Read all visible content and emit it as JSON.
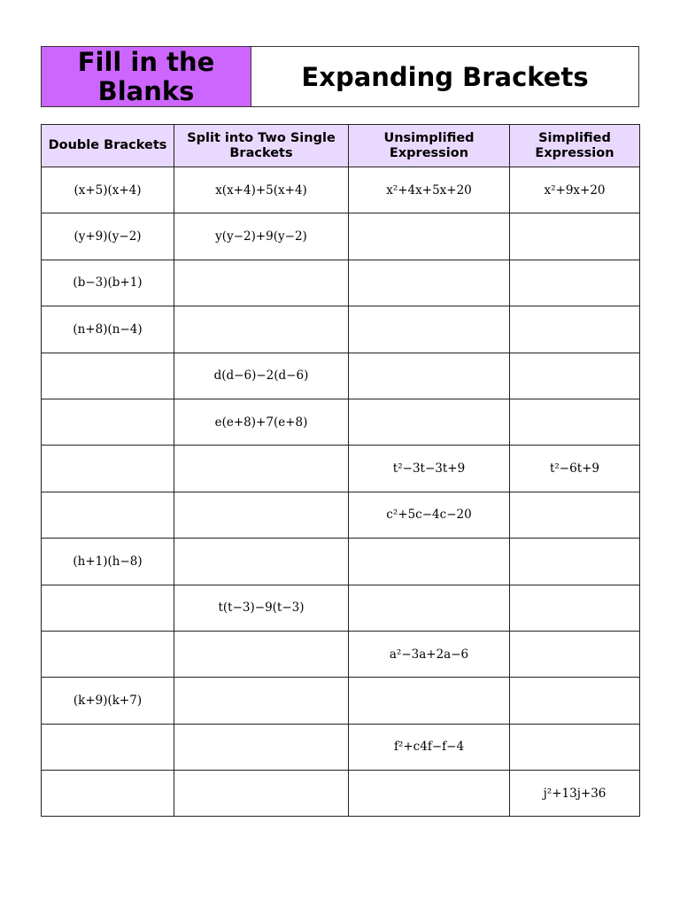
{
  "title": {
    "left": "Fill in the Blanks",
    "right": "Expanding Brackets"
  },
  "colors": {
    "title_fill": "#cc66ff",
    "header_fill": "#ead9ff"
  },
  "columns": [
    "Double Brackets",
    "Split into Two Single Brackets",
    "Unsimplified Expression",
    "Simplified Expression"
  ],
  "rows": [
    [
      "(x+5)(x+4)",
      "x(x+4)+5(x+4)",
      "x²+4x+5x+20",
      "x²+9x+20"
    ],
    [
      "(y+9)(y−2)",
      "y(y−2)+9(y−2)",
      "",
      ""
    ],
    [
      "(b−3)(b+1)",
      "",
      "",
      ""
    ],
    [
      "(n+8)(n−4)",
      "",
      "",
      ""
    ],
    [
      "",
      "d(d−6)−2(d−6)",
      "",
      ""
    ],
    [
      "",
      "e(e+8)+7(e+8)",
      "",
      ""
    ],
    [
      "",
      "",
      "t²−3t−3t+9",
      "t²−6t+9"
    ],
    [
      "",
      "",
      "c²+5c−4c−20",
      ""
    ],
    [
      "(h+1)(h−8)",
      "",
      "",
      ""
    ],
    [
      "",
      "t(t−3)−9(t−3)",
      "",
      ""
    ],
    [
      "",
      "",
      "a²−3a+2a−6",
      ""
    ],
    [
      "(k+9)(k+7)",
      "",
      "",
      ""
    ],
    [
      "",
      "",
      "f²+c4f−f−4",
      ""
    ],
    [
      "",
      "",
      "",
      "j²+13j+36"
    ]
  ]
}
